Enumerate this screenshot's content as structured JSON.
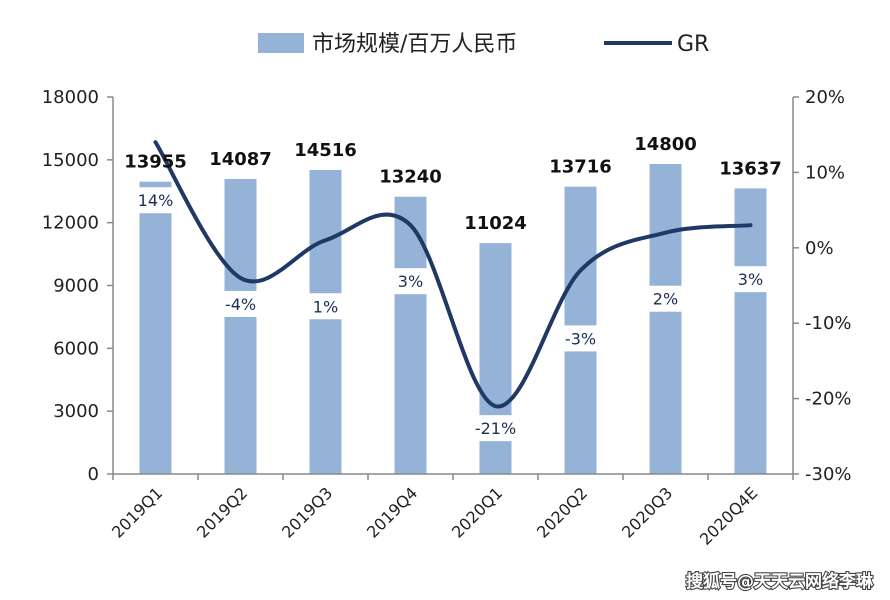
{
  "chart_data": {
    "type": "bar",
    "categories": [
      "2019Q1",
      "2019Q2",
      "2019Q3",
      "2019Q4",
      "2020Q1",
      "2020Q2",
      "2020Q3",
      "2020Q4E"
    ],
    "series": [
      {
        "name": "市场规模/百万人民币",
        "type": "bar",
        "axis": "left",
        "values": [
          13955,
          14087,
          14516,
          13240,
          11024,
          13716,
          14800,
          13637
        ],
        "labels": [
          "13955",
          "14087",
          "14516",
          "13240",
          "11024",
          "13716",
          "14800",
          "13637"
        ],
        "color": "#95b3d7"
      },
      {
        "name": "GR",
        "type": "line",
        "axis": "right",
        "values": [
          14,
          -4,
          1,
          3,
          -21,
          -3,
          2,
          3
        ],
        "labels": [
          "14%",
          "-4%",
          "1%",
          "3%",
          "-21%",
          "-3%",
          "2%",
          "3%"
        ],
        "color": "#1f3864"
      }
    ],
    "y_left": {
      "min": 0,
      "max": 18000,
      "ticks": [
        "0",
        "3000",
        "6000",
        "9000",
        "12000",
        "15000",
        "18000"
      ]
    },
    "y_right": {
      "min": -30,
      "max": 20,
      "ticks": [
        "-30%",
        "-20%",
        "-10%",
        "0%",
        "10%",
        "20%"
      ]
    },
    "legend_position": "top",
    "grid": false
  },
  "watermark": "搜狐号@天天云网络李琳"
}
